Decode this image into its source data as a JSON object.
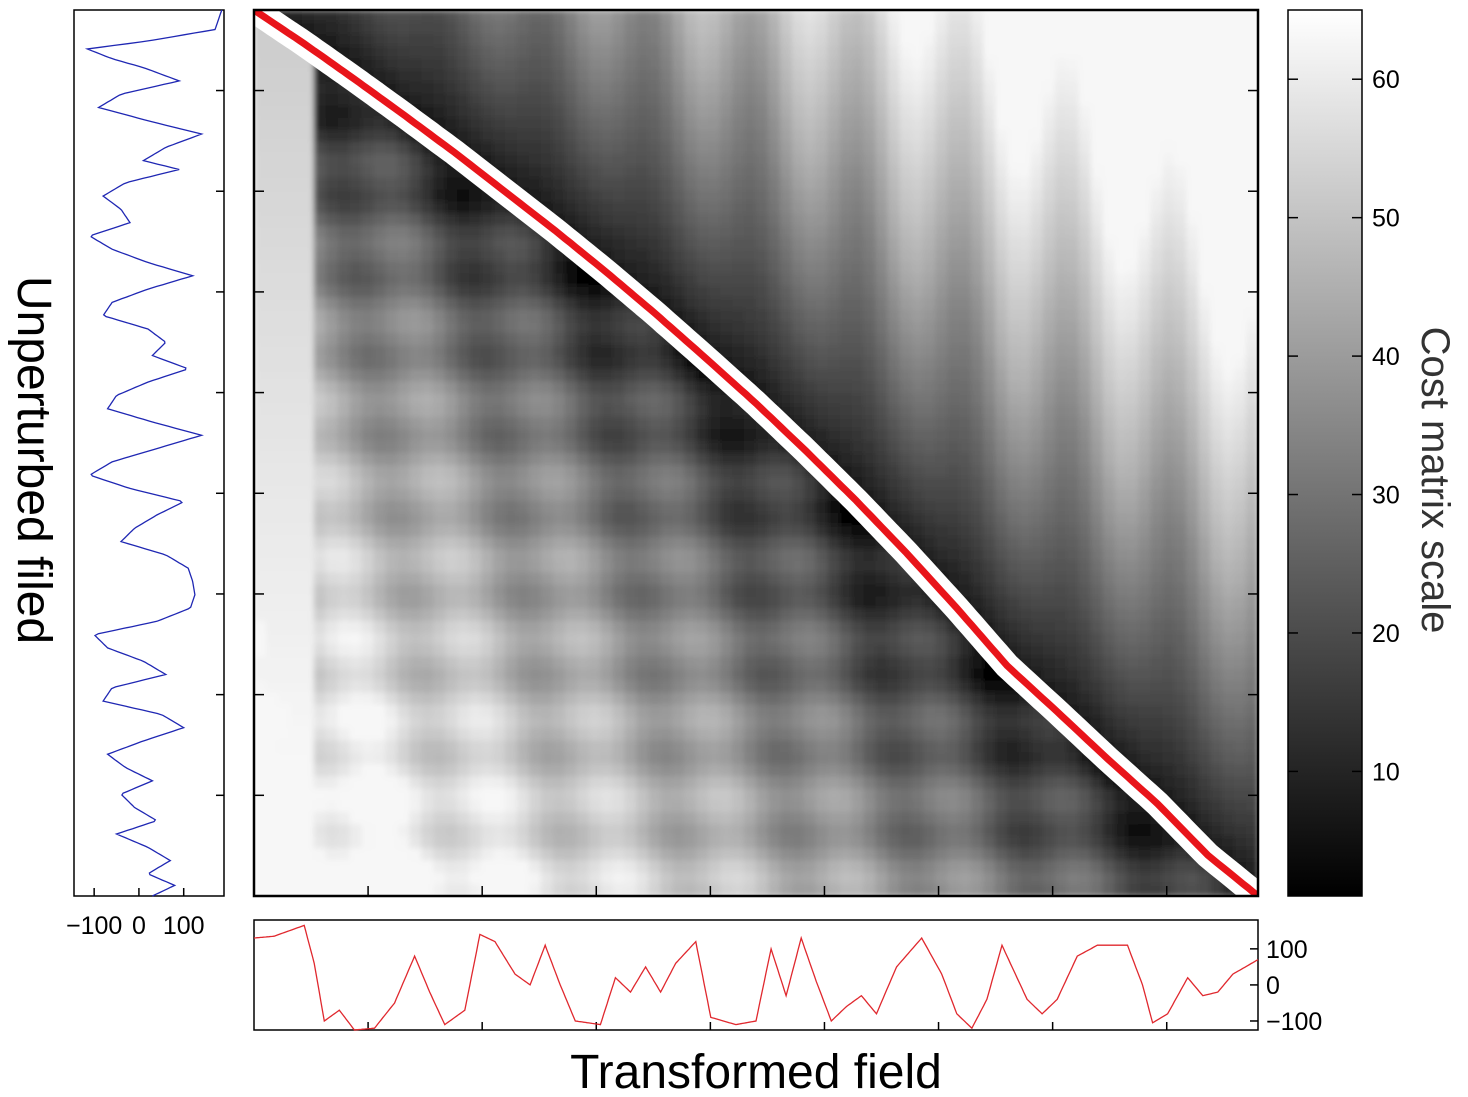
{
  "chart_data": [
    {
      "type": "heatmap",
      "id": "cost_matrix",
      "xlabel": "Transformed field",
      "ylabel": "Unperturbed filed",
      "colorbar": {
        "label": "Cost matrix scale",
        "min": 1,
        "max": 65,
        "ticks": [
          10,
          20,
          30,
          40,
          50,
          60
        ],
        "colormap": "gray"
      },
      "path_color": "#e8141a",
      "path": {
        "x": [
          0,
          0.05,
          0.1,
          0.15,
          0.2,
          0.25,
          0.3,
          0.35,
          0.4,
          0.45,
          0.5,
          0.55,
          0.6,
          0.65,
          0.7,
          0.75,
          0.8,
          0.85,
          0.9,
          0.95,
          1.0
        ],
        "y": [
          1.0,
          0.962,
          0.922,
          0.881,
          0.839,
          0.795,
          0.751,
          0.705,
          0.657,
          0.607,
          0.556,
          0.502,
          0.446,
          0.387,
          0.325,
          0.26,
          0.208,
          0.155,
          0.104,
          0.046,
          0
        ]
      }
    },
    {
      "type": "line",
      "id": "unperturbed_field",
      "orientation": "vertical",
      "color": "#1f27b3",
      "xticks": [
        "−100",
        "0",
        "100"
      ],
      "xtick_values": [
        -100,
        0,
        100
      ],
      "xlim": [
        -145,
        190
      ],
      "profile": [
        [
          1.0,
          185
        ],
        [
          0.978,
          170
        ],
        [
          0.965,
          20
        ],
        [
          0.956,
          -115
        ],
        [
          0.945,
          -60
        ],
        [
          0.935,
          10
        ],
        [
          0.92,
          90
        ],
        [
          0.905,
          -40
        ],
        [
          0.89,
          -90
        ],
        [
          0.875,
          20
        ],
        [
          0.86,
          140
        ],
        [
          0.845,
          60
        ],
        [
          0.83,
          10
        ],
        [
          0.82,
          90
        ],
        [
          0.805,
          -30
        ],
        [
          0.79,
          -80
        ],
        [
          0.775,
          -40
        ],
        [
          0.76,
          -20
        ],
        [
          0.745,
          -110
        ],
        [
          0.73,
          -60
        ],
        [
          0.715,
          20
        ],
        [
          0.7,
          120
        ],
        [
          0.685,
          20
        ],
        [
          0.67,
          -60
        ],
        [
          0.655,
          -80
        ],
        [
          0.64,
          20
        ],
        [
          0.625,
          60
        ],
        [
          0.61,
          30
        ],
        [
          0.595,
          110
        ],
        [
          0.58,
          20
        ],
        [
          0.565,
          -50
        ],
        [
          0.55,
          -70
        ],
        [
          0.535,
          30
        ],
        [
          0.52,
          140
        ],
        [
          0.505,
          40
        ],
        [
          0.49,
          -60
        ],
        [
          0.475,
          -110
        ],
        [
          0.46,
          -20
        ],
        [
          0.445,
          100
        ],
        [
          0.43,
          40
        ],
        [
          0.415,
          -10
        ],
        [
          0.4,
          -40
        ],
        [
          0.385,
          60
        ],
        [
          0.37,
          110
        ],
        [
          0.355,
          120
        ],
        [
          0.34,
          125
        ],
        [
          0.325,
          115
        ],
        [
          0.31,
          40
        ],
        [
          0.295,
          -100
        ],
        [
          0.28,
          -70
        ],
        [
          0.265,
          10
        ],
        [
          0.25,
          60
        ],
        [
          0.235,
          -60
        ],
        [
          0.22,
          -80
        ],
        [
          0.205,
          50
        ],
        [
          0.19,
          100
        ],
        [
          0.175,
          10
        ],
        [
          0.16,
          -70
        ],
        [
          0.145,
          -30
        ],
        [
          0.13,
          30
        ],
        [
          0.115,
          -40
        ],
        [
          0.1,
          -10
        ],
        [
          0.085,
          40
        ],
        [
          0.07,
          -50
        ],
        [
          0.055,
          20
        ],
        [
          0.04,
          70
        ],
        [
          0.025,
          20
        ],
        [
          0.012,
          80
        ],
        [
          0.0,
          30
        ]
      ]
    },
    {
      "type": "line",
      "id": "transformed_field",
      "color": "#e0282e",
      "yticks": [
        "100",
        "0",
        "−100"
      ],
      "ytick_values": [
        100,
        0,
        -100
      ],
      "ylim": [
        -125,
        180
      ],
      "profile": [
        [
          0.0,
          130
        ],
        [
          0.02,
          135
        ],
        [
          0.05,
          165
        ],
        [
          0.06,
          60
        ],
        [
          0.07,
          -100
        ],
        [
          0.085,
          -70
        ],
        [
          0.1,
          -125
        ],
        [
          0.12,
          -120
        ],
        [
          0.14,
          -50
        ],
        [
          0.16,
          80
        ],
        [
          0.175,
          -20
        ],
        [
          0.19,
          -110
        ],
        [
          0.21,
          -70
        ],
        [
          0.225,
          140
        ],
        [
          0.24,
          120
        ],
        [
          0.26,
          30
        ],
        [
          0.275,
          0
        ],
        [
          0.29,
          110
        ],
        [
          0.305,
          0
        ],
        [
          0.32,
          -100
        ],
        [
          0.345,
          -110
        ],
        [
          0.36,
          20
        ],
        [
          0.375,
          -20
        ],
        [
          0.39,
          50
        ],
        [
          0.405,
          -20
        ],
        [
          0.42,
          60
        ],
        [
          0.44,
          120
        ],
        [
          0.455,
          -90
        ],
        [
          0.48,
          -110
        ],
        [
          0.5,
          -100
        ],
        [
          0.515,
          100
        ],
        [
          0.53,
          -30
        ],
        [
          0.545,
          130
        ],
        [
          0.56,
          10
        ],
        [
          0.575,
          -100
        ],
        [
          0.59,
          -60
        ],
        [
          0.605,
          -30
        ],
        [
          0.62,
          -80
        ],
        [
          0.64,
          50
        ],
        [
          0.665,
          130
        ],
        [
          0.685,
          30
        ],
        [
          0.7,
          -80
        ],
        [
          0.715,
          -120
        ],
        [
          0.73,
          -40
        ],
        [
          0.745,
          110
        ],
        [
          0.76,
          20
        ],
        [
          0.77,
          -40
        ],
        [
          0.785,
          -80
        ],
        [
          0.8,
          -40
        ],
        [
          0.82,
          80
        ],
        [
          0.84,
          110
        ],
        [
          0.87,
          110
        ],
        [
          0.885,
          0
        ],
        [
          0.895,
          -105
        ],
        [
          0.91,
          -80
        ],
        [
          0.93,
          20
        ],
        [
          0.945,
          -30
        ],
        [
          0.96,
          -20
        ],
        [
          0.975,
          30
        ],
        [
          1.0,
          70
        ]
      ]
    }
  ]
}
